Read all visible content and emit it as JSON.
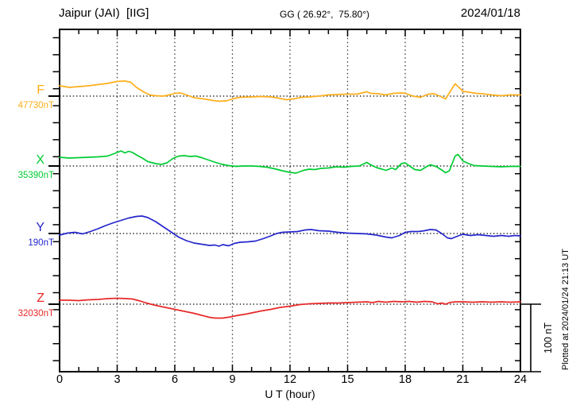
{
  "header": {
    "station": "Jaipur (JAI)  [IIG]",
    "coords": "GG ( 26.92°,  75.80°)",
    "date": "2024/01/18"
  },
  "xaxis": {
    "label": "U T (hour)",
    "ticks": [
      "0",
      "3",
      "6",
      "9",
      "12",
      "15",
      "18",
      "21",
      "24"
    ]
  },
  "scalebar": {
    "label": "100 nT",
    "nT": 100
  },
  "footer": {
    "plotted_note": "Plotted at 2024/01/24 21:13 UT"
  },
  "chart_data": {
    "type": "line",
    "title": "Jaipur (JAI) [IIG] magnetogram 2024/01/18",
    "xlabel": "U T (hour)",
    "ylabel": "",
    "xlim": [
      0,
      24
    ],
    "x_major_ticks": [
      0,
      3,
      6,
      9,
      12,
      15,
      18,
      21,
      24
    ],
    "x_minor_tick_step_hours": 1,
    "grid": "vertical dotted lines every 3 h; dotted horizontal baseline per component",
    "scale_bar": {
      "label": "100 nT",
      "nT_per_bar": 100
    },
    "unit": "nT",
    "series": [
      {
        "name": "F",
        "baseline_label": "47730nT",
        "baseline_nT": 47730,
        "color": "#FFAE1A",
        "points": [
          [
            0,
            15.3
          ],
          [
            0.5,
            12.9
          ],
          [
            1,
            14.1
          ],
          [
            1.5,
            15.3
          ],
          [
            2,
            17.1
          ],
          [
            2.5,
            18.8
          ],
          [
            3,
            21.8
          ],
          [
            3.4,
            22.4
          ],
          [
            3.7,
            20.6
          ],
          [
            4,
            12.9
          ],
          [
            4.4,
            5.9
          ],
          [
            4.7,
            1.8
          ],
          [
            5,
            0.6
          ],
          [
            5.4,
            0
          ],
          [
            5.8,
            2.4
          ],
          [
            6,
            4.1
          ],
          [
            6.3,
            4.7
          ],
          [
            6.6,
            1.8
          ],
          [
            7,
            -2.4
          ],
          [
            7.5,
            -4.1
          ],
          [
            8,
            -6.5
          ],
          [
            8.3,
            -7.6
          ],
          [
            8.7,
            -7.1
          ],
          [
            9,
            -4.1
          ],
          [
            9.4,
            -1.8
          ],
          [
            10,
            -1.2
          ],
          [
            10.5,
            -0.6
          ],
          [
            11,
            -1.2
          ],
          [
            11.4,
            -2.9
          ],
          [
            11.8,
            -5.3
          ],
          [
            12.2,
            -4.1
          ],
          [
            12.6,
            -1.8
          ],
          [
            13,
            -1.2
          ],
          [
            13.5,
            0
          ],
          [
            14,
            1.8
          ],
          [
            14.5,
            2.4
          ],
          [
            15,
            2.9
          ],
          [
            15.5,
            2.9
          ],
          [
            16,
            6.5
          ],
          [
            16.2,
            4.1
          ],
          [
            16.6,
            3.5
          ],
          [
            17,
            1.8
          ],
          [
            17.4,
            4.1
          ],
          [
            17.8,
            4.7
          ],
          [
            18,
            4.1
          ],
          [
            18.4,
            0
          ],
          [
            18.8,
            -1.8
          ],
          [
            19.2,
            2.9
          ],
          [
            19.5,
            3.5
          ],
          [
            19.8,
            0
          ],
          [
            20.1,
            -4.1
          ],
          [
            20.35,
            7.1
          ],
          [
            20.6,
            18.2
          ],
          [
            20.8,
            12.9
          ],
          [
            21,
            7.1
          ],
          [
            21.3,
            5.9
          ],
          [
            21.7,
            4.1
          ],
          [
            22,
            3.5
          ],
          [
            22.5,
            1.8
          ],
          [
            23,
            0.6
          ],
          [
            23.5,
            1.8
          ],
          [
            24,
            1.8
          ]
        ]
      },
      {
        "name": "X",
        "baseline_label": "35390nT",
        "baseline_nT": 35390,
        "color": "#00CC33",
        "points": [
          [
            0,
            12.9
          ],
          [
            0.5,
            11.8
          ],
          [
            1,
            12.4
          ],
          [
            1.5,
            12.9
          ],
          [
            2,
            13.5
          ],
          [
            2.5,
            14.7
          ],
          [
            3,
            20
          ],
          [
            3.2,
            22.4
          ],
          [
            3.4,
            19.4
          ],
          [
            3.6,
            21.8
          ],
          [
            3.8,
            20
          ],
          [
            4,
            16.5
          ],
          [
            4.3,
            11.8
          ],
          [
            4.6,
            6.5
          ],
          [
            5,
            3.5
          ],
          [
            5.3,
            2.4
          ],
          [
            5.6,
            4.7
          ],
          [
            5.9,
            11.2
          ],
          [
            6.2,
            14.7
          ],
          [
            6.5,
            15.3
          ],
          [
            6.8,
            14.1
          ],
          [
            7.1,
            14.7
          ],
          [
            7.4,
            12.4
          ],
          [
            7.7,
            9.4
          ],
          [
            8,
            6.5
          ],
          [
            8.4,
            2.9
          ],
          [
            8.8,
            0.6
          ],
          [
            9.2,
            -0.6
          ],
          [
            9.6,
            0
          ],
          [
            10,
            0
          ],
          [
            10.4,
            -0.6
          ],
          [
            10.8,
            -1.8
          ],
          [
            11.2,
            -4.1
          ],
          [
            11.6,
            -7.1
          ],
          [
            12,
            -9.4
          ],
          [
            12.3,
            -10.6
          ],
          [
            12.7,
            -6.5
          ],
          [
            13,
            -4.7
          ],
          [
            13.3,
            -5.3
          ],
          [
            13.6,
            -3.5
          ],
          [
            14,
            -2.9
          ],
          [
            14.4,
            -1.2
          ],
          [
            14.8,
            -1.8
          ],
          [
            15.2,
            -0.6
          ],
          [
            15.6,
            0
          ],
          [
            16,
            5.3
          ],
          [
            16.2,
            1.8
          ],
          [
            16.5,
            -2.4
          ],
          [
            16.8,
            -4.7
          ],
          [
            17,
            -6.5
          ],
          [
            17.3,
            -2.9
          ],
          [
            17.5,
            -5.3
          ],
          [
            17.8,
            3.5
          ],
          [
            18,
            4.7
          ],
          [
            18.2,
            0.6
          ],
          [
            18.5,
            -5.3
          ],
          [
            18.8,
            -6.5
          ],
          [
            19.1,
            -1.2
          ],
          [
            19.3,
            1.8
          ],
          [
            19.6,
            -0.6
          ],
          [
            19.9,
            -5.9
          ],
          [
            20.1,
            -10
          ],
          [
            20.3,
            -7.1
          ],
          [
            20.6,
            14.7
          ],
          [
            20.75,
            17.1
          ],
          [
            21,
            7.6
          ],
          [
            21.3,
            3.5
          ],
          [
            21.6,
            0.6
          ],
          [
            22,
            0
          ],
          [
            22.5,
            -0.6
          ],
          [
            23,
            -1.2
          ],
          [
            23.5,
            -0.6
          ],
          [
            24,
            -0.6
          ]
        ]
      },
      {
        "name": "Y",
        "baseline_label": "190nT",
        "baseline_nT": 190,
        "color": "#2626CC",
        "points": [
          [
            0,
            -2.4
          ],
          [
            0.4,
            0.6
          ],
          [
            0.8,
            1.8
          ],
          [
            1.2,
            -0.6
          ],
          [
            1.6,
            2.9
          ],
          [
            2,
            7.1
          ],
          [
            2.4,
            11.8
          ],
          [
            2.8,
            15.9
          ],
          [
            3.2,
            19.4
          ],
          [
            3.6,
            22.9
          ],
          [
            4,
            25.3
          ],
          [
            4.3,
            25.9
          ],
          [
            4.6,
            23.5
          ],
          [
            5,
            17.6
          ],
          [
            5.4,
            10
          ],
          [
            5.8,
            2.4
          ],
          [
            6.2,
            -5.3
          ],
          [
            6.6,
            -10.6
          ],
          [
            7,
            -14.1
          ],
          [
            7.4,
            -15.9
          ],
          [
            7.8,
            -17.6
          ],
          [
            8.1,
            -17.1
          ],
          [
            8.3,
            -18.8
          ],
          [
            8.5,
            -16.5
          ],
          [
            8.8,
            -18.2
          ],
          [
            9.1,
            -14.7
          ],
          [
            9.4,
            -12.9
          ],
          [
            9.8,
            -12.4
          ],
          [
            10.2,
            -11.2
          ],
          [
            10.6,
            -7.6
          ],
          [
            11,
            -3.5
          ],
          [
            11.3,
            0
          ],
          [
            11.6,
            1.8
          ],
          [
            12,
            2.4
          ],
          [
            12.4,
            2.9
          ],
          [
            12.8,
            5.3
          ],
          [
            13.1,
            5.9
          ],
          [
            13.5,
            4.1
          ],
          [
            14,
            3.5
          ],
          [
            14.5,
            1.8
          ],
          [
            15,
            0.6
          ],
          [
            15.5,
            0
          ],
          [
            16,
            -0.6
          ],
          [
            16.5,
            -2.4
          ],
          [
            17,
            -5.3
          ],
          [
            17.3,
            -6.5
          ],
          [
            17.7,
            -2.9
          ],
          [
            18,
            1.8
          ],
          [
            18.3,
            2.9
          ],
          [
            18.7,
            2.9
          ],
          [
            19,
            4.1
          ],
          [
            19.3,
            5.9
          ],
          [
            19.6,
            5.3
          ],
          [
            19.9,
            0
          ],
          [
            20.2,
            -6.5
          ],
          [
            20.4,
            -7.6
          ],
          [
            20.7,
            -4.1
          ],
          [
            21,
            -1.2
          ],
          [
            21.4,
            -2.9
          ],
          [
            21.8,
            -1.8
          ],
          [
            22.2,
            -2.9
          ],
          [
            22.6,
            -4.1
          ],
          [
            23,
            -2.9
          ],
          [
            23.4,
            -4.1
          ],
          [
            23.7,
            -2.9
          ],
          [
            24,
            -3.5
          ]
        ]
      },
      {
        "name": "Z",
        "baseline_label": "32030nT",
        "baseline_nT": 32030,
        "color": "#E82828",
        "points": [
          [
            0,
            5.9
          ],
          [
            0.5,
            5.9
          ],
          [
            1,
            5.3
          ],
          [
            1.5,
            6.5
          ],
          [
            2,
            7.1
          ],
          [
            2.5,
            8.2
          ],
          [
            3,
            8.8
          ],
          [
            3.5,
            8.2
          ],
          [
            3.8,
            7.6
          ],
          [
            4.2,
            4.7
          ],
          [
            4.6,
            1.2
          ],
          [
            5,
            -1.8
          ],
          [
            5.4,
            -4.1
          ],
          [
            5.8,
            -6.5
          ],
          [
            6.2,
            -8.8
          ],
          [
            6.6,
            -11.2
          ],
          [
            7,
            -13.5
          ],
          [
            7.4,
            -16.5
          ],
          [
            7.8,
            -19.4
          ],
          [
            8.1,
            -20.6
          ],
          [
            8.5,
            -20.6
          ],
          [
            8.9,
            -18.8
          ],
          [
            9.3,
            -16.5
          ],
          [
            9.7,
            -14.7
          ],
          [
            10.1,
            -12.4
          ],
          [
            10.5,
            -10
          ],
          [
            11,
            -7.6
          ],
          [
            11.5,
            -4.7
          ],
          [
            12,
            -2.9
          ],
          [
            12.5,
            -0.6
          ],
          [
            13,
            0.6
          ],
          [
            13.5,
            1.2
          ],
          [
            14,
            1.8
          ],
          [
            14.5,
            1.8
          ],
          [
            15,
            2.4
          ],
          [
            15.5,
            2.9
          ],
          [
            16,
            3.5
          ],
          [
            16.3,
            2.4
          ],
          [
            16.6,
            4.1
          ],
          [
            17,
            2.9
          ],
          [
            17.4,
            4.1
          ],
          [
            17.8,
            3.5
          ],
          [
            18.2,
            4.1
          ],
          [
            18.6,
            2.9
          ],
          [
            19,
            4.1
          ],
          [
            19.4,
            3.5
          ],
          [
            19.7,
            0.6
          ],
          [
            19.9,
            1.8
          ],
          [
            20.1,
            0
          ],
          [
            20.3,
            2.4
          ],
          [
            20.6,
            3.5
          ],
          [
            21,
            3.5
          ],
          [
            21.5,
            2.9
          ],
          [
            22,
            3.5
          ],
          [
            22.5,
            2.9
          ],
          [
            23,
            3.5
          ],
          [
            23.5,
            2.9
          ],
          [
            24,
            3.5
          ]
        ]
      }
    ]
  }
}
